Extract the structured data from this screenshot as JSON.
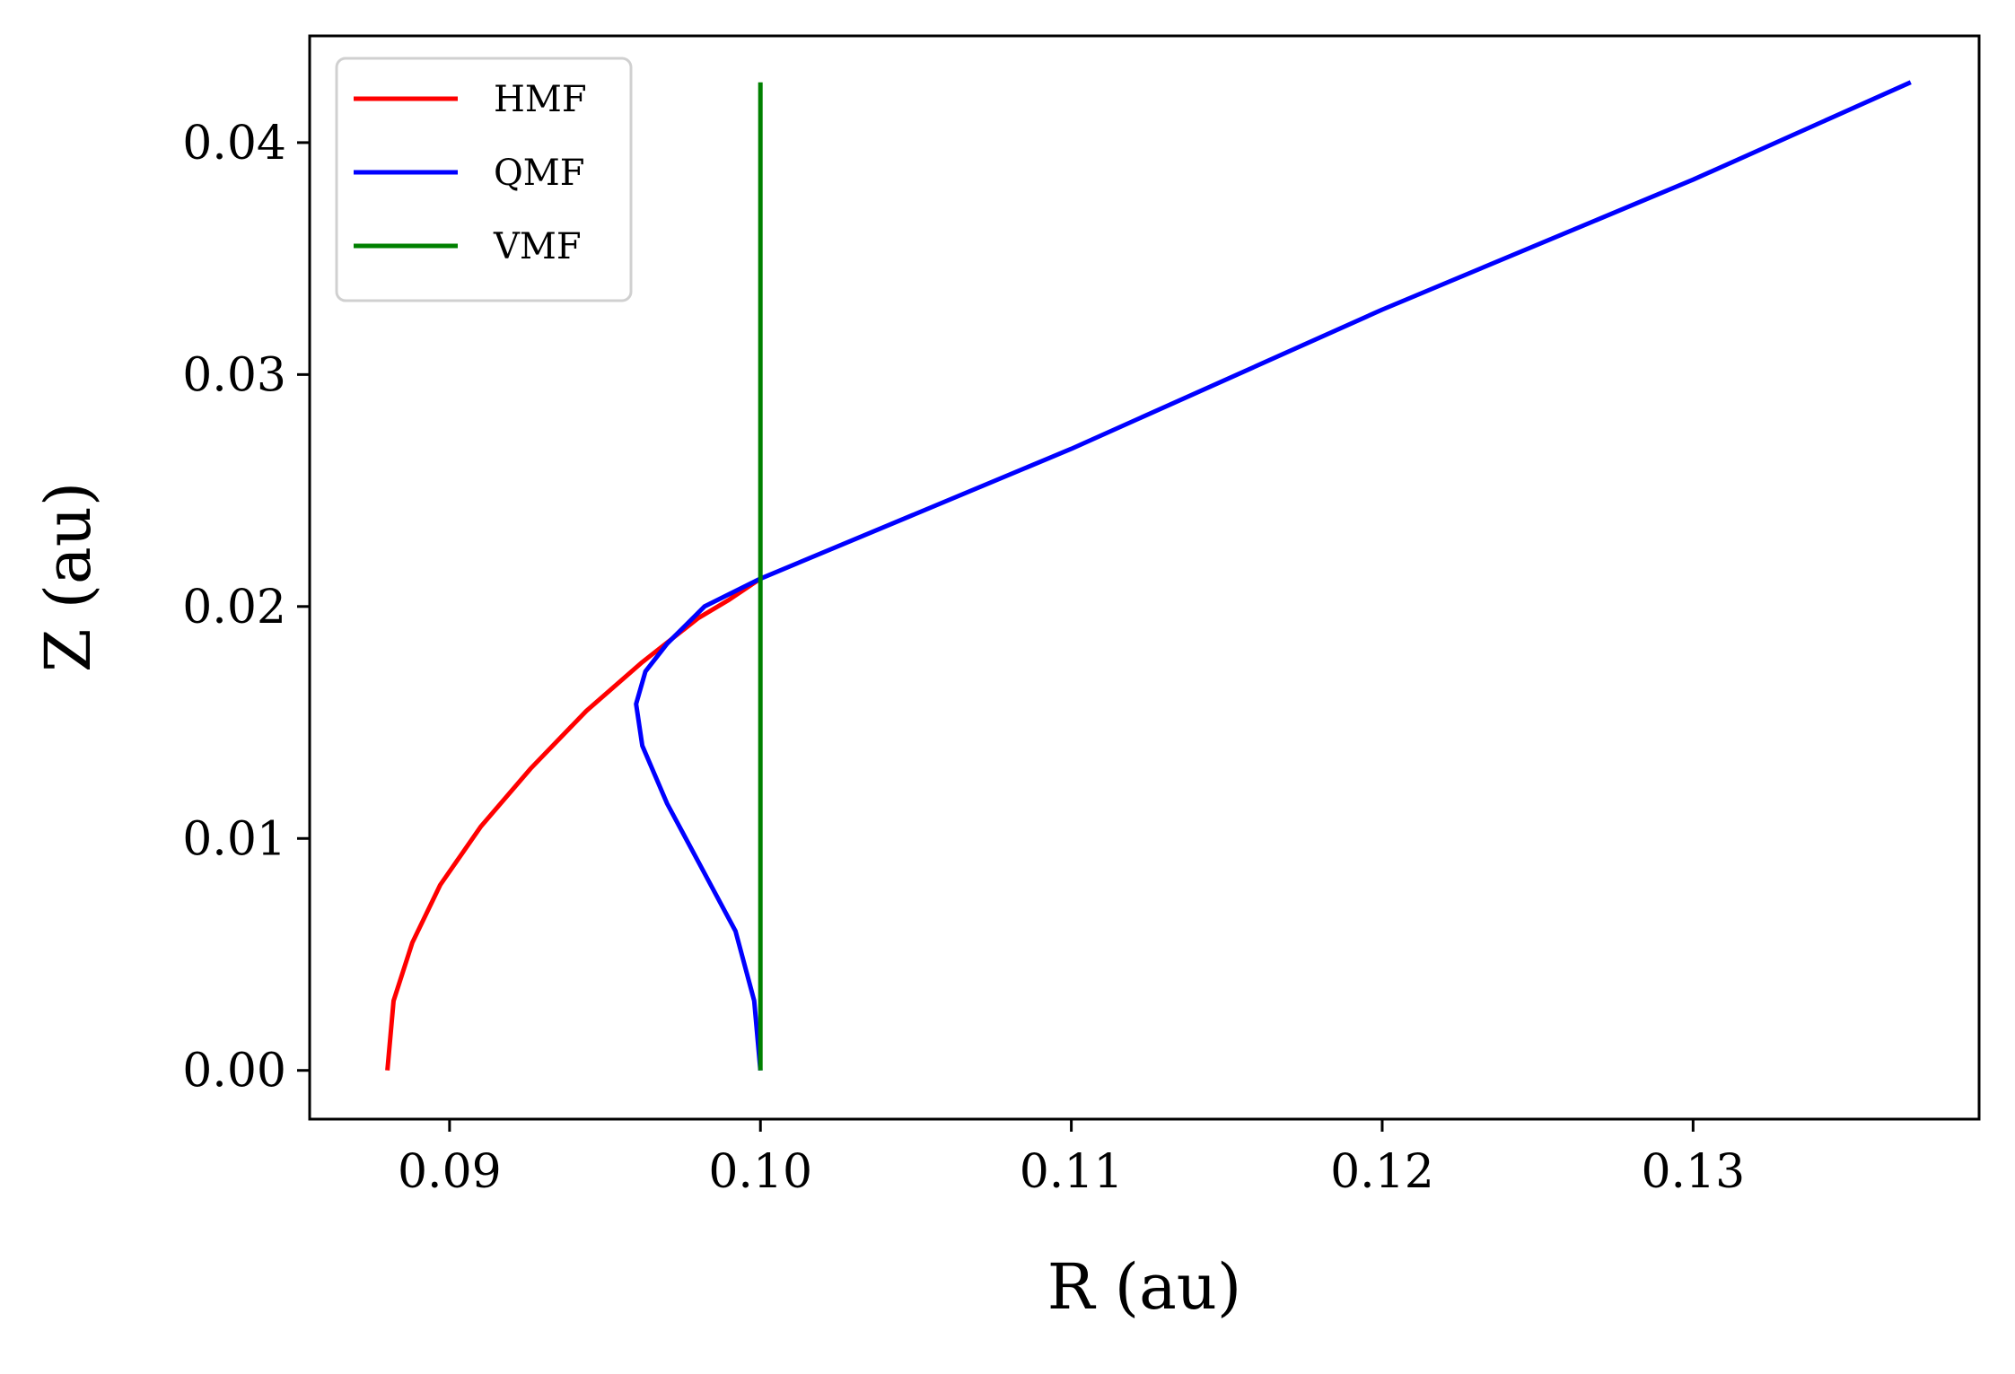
{
  "chart_data": {
    "type": "line",
    "title": "",
    "xlabel": "R (au)",
    "ylabel": "Z (au)",
    "xlim": [
      0.0855,
      0.1392
    ],
    "ylim": [
      -0.0021,
      0.0446
    ],
    "xticks": [
      0.09,
      0.1,
      0.11,
      0.12,
      0.13
    ],
    "xtick_labels": [
      "0.09",
      "0.10",
      "0.11",
      "0.12",
      "0.13"
    ],
    "yticks": [
      0.0,
      0.01,
      0.02,
      0.03,
      0.04
    ],
    "ytick_labels": [
      "0.00",
      "0.01",
      "0.02",
      "0.03",
      "0.04"
    ],
    "grid": false,
    "legend_position": "top-left",
    "series": [
      {
        "name": "HMF",
        "color": "#ff0000",
        "x": [
          0.088,
          0.0882,
          0.0888,
          0.0897,
          0.091,
          0.0926,
          0.0944,
          0.0962,
          0.098,
          0.099,
          0.1
        ],
        "y": [
          0.0,
          0.003,
          0.0055,
          0.008,
          0.0105,
          0.013,
          0.0155,
          0.0176,
          0.0195,
          0.0203,
          0.0212
        ]
      },
      {
        "name": "QMF",
        "color": "#0000ff",
        "x": [
          0.1,
          0.0998,
          0.0992,
          0.0982,
          0.097,
          0.0962,
          0.096,
          0.0963,
          0.097,
          0.0982,
          0.1,
          0.11,
          0.12,
          0.13,
          0.137
        ],
        "y": [
          0.0,
          0.003,
          0.006,
          0.0085,
          0.0115,
          0.014,
          0.0158,
          0.0172,
          0.0184,
          0.02,
          0.0212,
          0.0268,
          0.0328,
          0.0384,
          0.0426
        ]
      },
      {
        "name": "VMF",
        "color": "#008000",
        "x": [
          0.1,
          0.1
        ],
        "y": [
          0.0,
          0.0426
        ]
      }
    ]
  }
}
